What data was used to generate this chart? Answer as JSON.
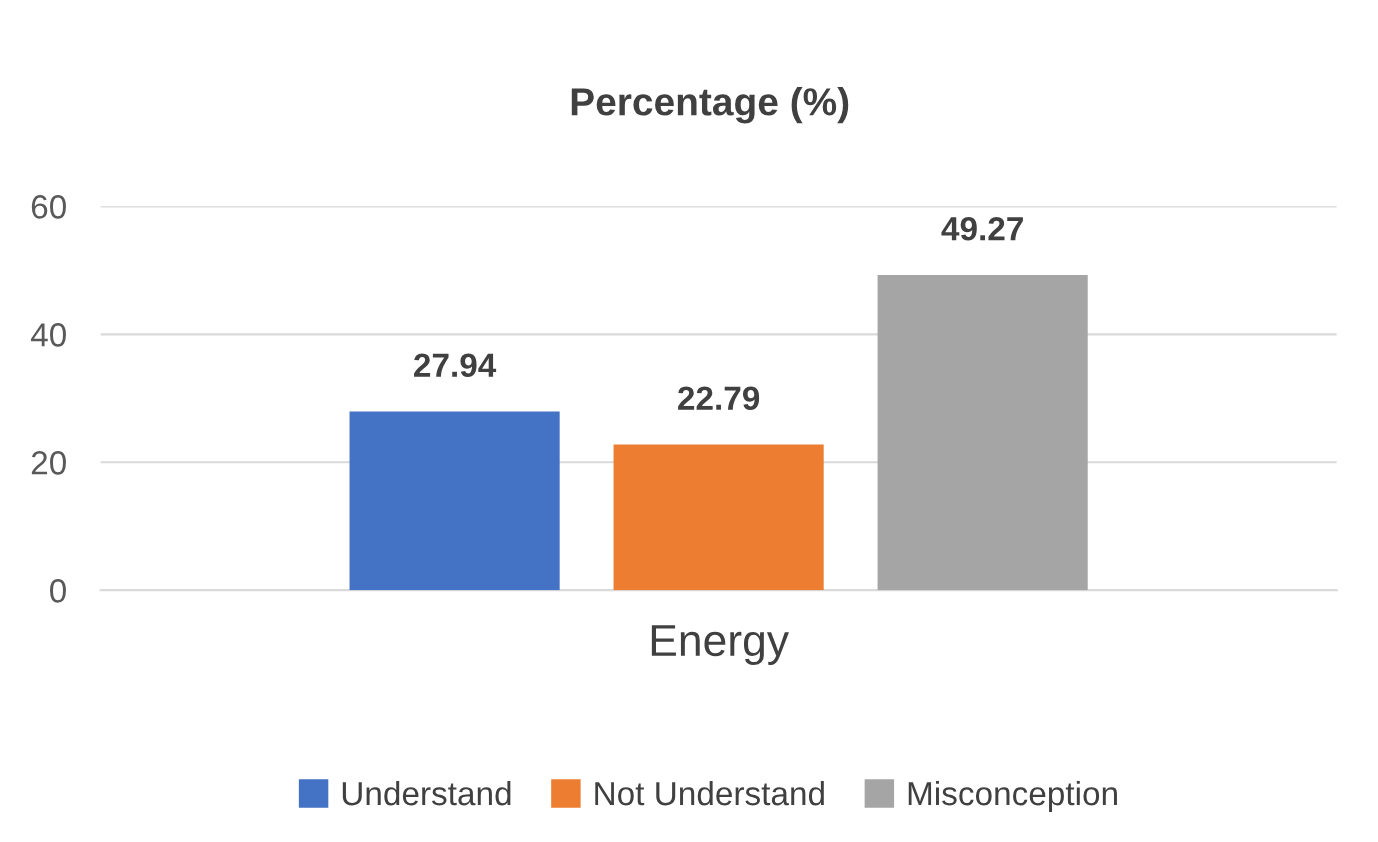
{
  "chart_data": {
    "type": "bar",
    "title": "Percentage (%)",
    "categories": [
      "Energy"
    ],
    "series": [
      {
        "name": "Understand",
        "color": "#4472c4",
        "values": [
          27.94
        ]
      },
      {
        "name": "Not Understand",
        "color": "#ed7d31",
        "values": [
          22.79
        ]
      },
      {
        "name": "Misconception",
        "color": "#a5a5a5",
        "values": [
          49.27
        ]
      }
    ],
    "ylim": [
      0,
      60
    ],
    "yticks": [
      0,
      20,
      40,
      60
    ],
    "grid": "y",
    "legend": "bottom",
    "data_labels": true
  }
}
